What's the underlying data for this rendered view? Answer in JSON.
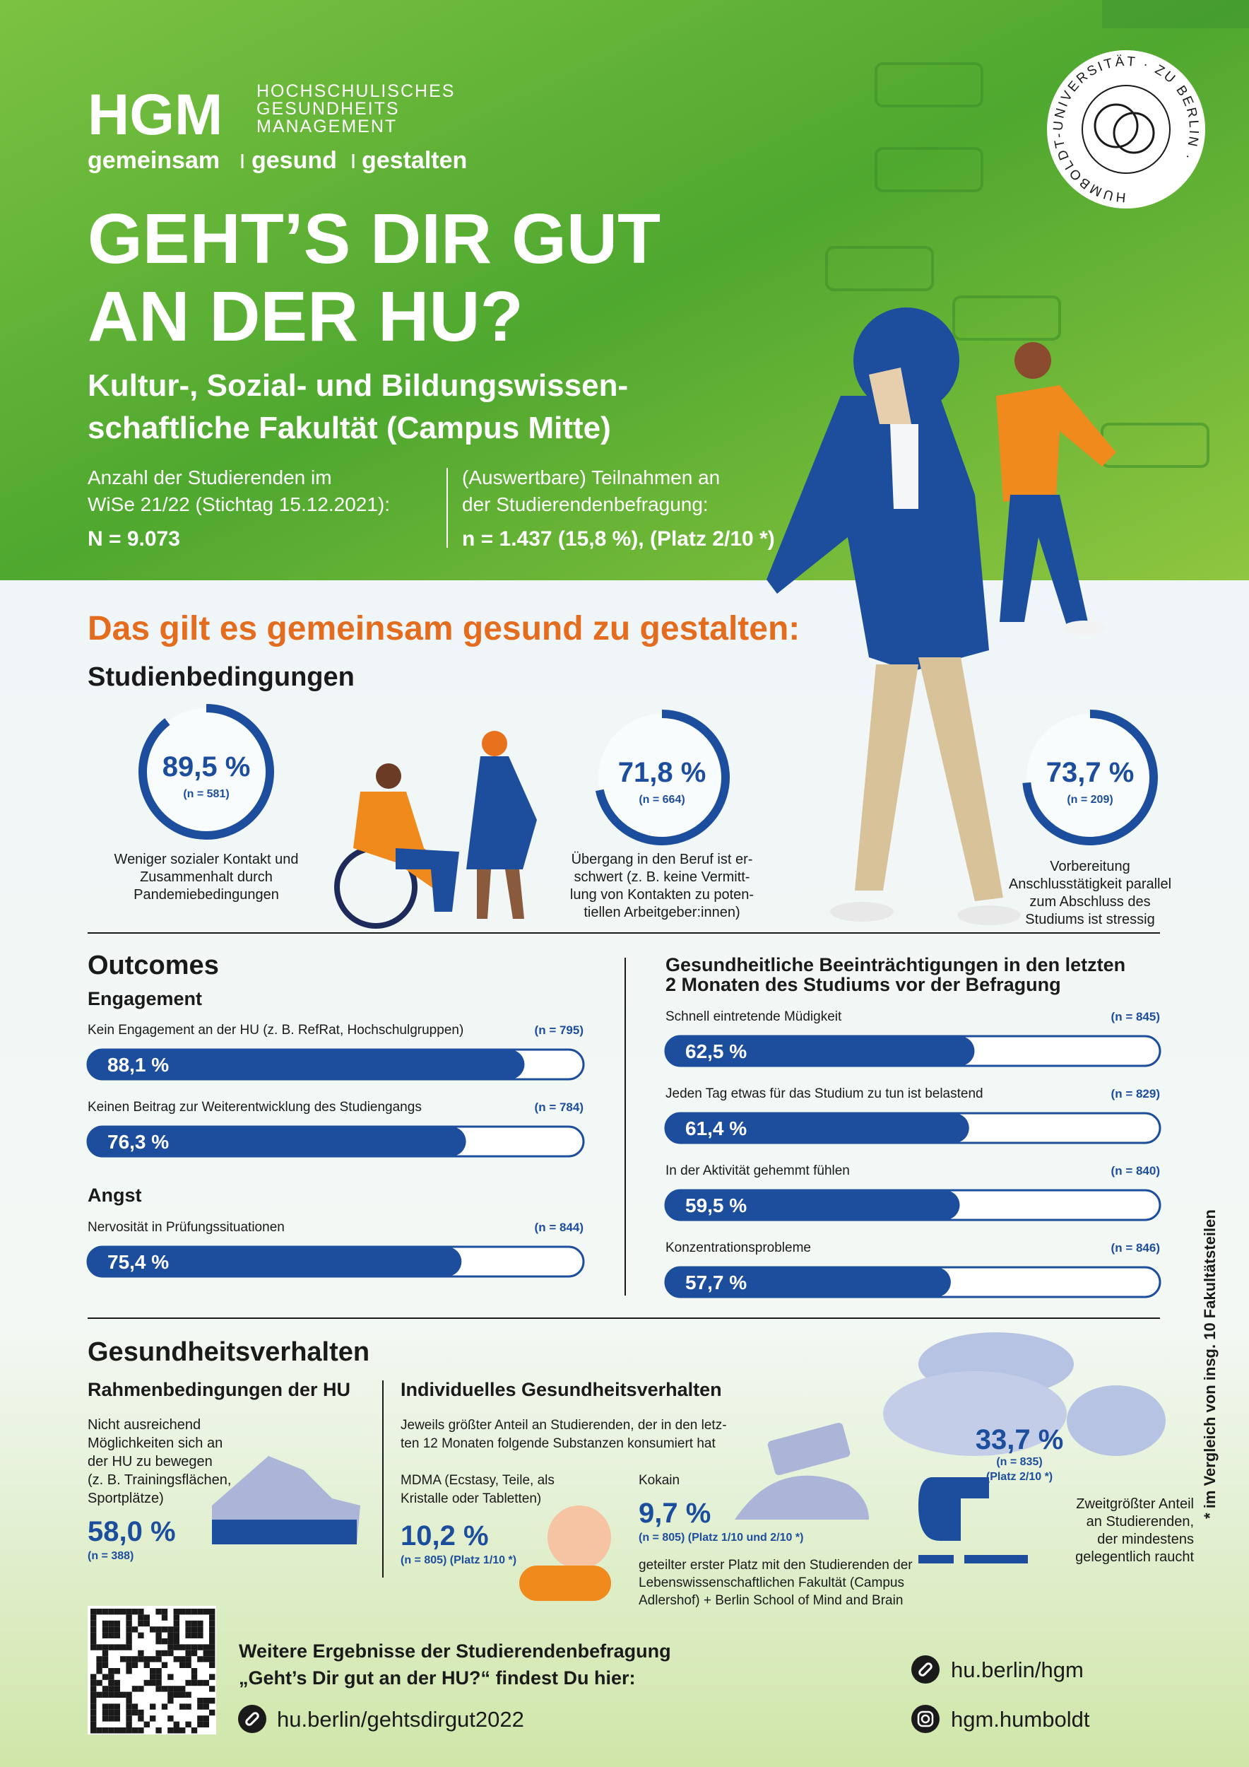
{
  "header": {
    "logo": "HGM",
    "logo_text": [
      "HOCHSCHULISCHES",
      "GESUNDHEITS",
      "MANAGEMENT"
    ],
    "tagline": [
      "gemeinsam",
      "gesund",
      "gestalten"
    ],
    "seal_text": "HUMBOLDT-UNIVERSITÄT · ZU BERLIN ·",
    "title": [
      "GEHT’S DIR GUT",
      "AN DER HU?"
    ],
    "subtitle": [
      "Kultur-, Sozial- und Bildungswissen-",
      "schaftliche Fakultät (Campus Mitte)"
    ],
    "stats": [
      {
        "label": [
          "Anzahl der Studierenden im",
          "WiSe 21/22 (Stichtag 15.12.2021):"
        ],
        "value": "N = 9.073"
      },
      {
        "label": [
          "(Auswertbare) Teilnahmen an",
          "der Studierendenbefragung:"
        ],
        "value": "n = 1.437 (15,8 %), (Platz 2/10 *)"
      }
    ]
  },
  "section_heading": "Das gilt es gemeinsam gesund zu gestalten:",
  "studienbedingungen": {
    "title": "Studienbedingungen",
    "items": [
      {
        "value": 89.5,
        "value_label": "89,5 %",
        "n": "(n = 581)",
        "caption": [
          "Weniger sozialer Kontakt und",
          "Zusammenhalt durch",
          "Pandemiebedingungen"
        ]
      },
      {
        "value": 71.8,
        "value_label": "71,8 %",
        "n": "(n = 664)",
        "caption": [
          "Übergang in den Beruf ist er-",
          "schwert (z. B. keine Vermitt-",
          "lung von Kontakten zu poten-",
          "tiellen Arbeitgeber:innen)"
        ]
      },
      {
        "value": 73.7,
        "value_label": "73,7 %",
        "n": "(n = 209)",
        "caption": [
          "Vorbereitung",
          "Anschlusstätigkeit parallel",
          "zum Abschluss des",
          "Studiums ist stressig"
        ]
      }
    ]
  },
  "outcomes": {
    "title": "Outcomes",
    "groups": [
      {
        "title": "Engagement",
        "items": [
          {
            "label": "Kein Engagement an der HU (z. B. RefRat, Hochschulgruppen)",
            "n": "(n = 795)",
            "value": 88.1,
            "value_label": "88,1 %"
          },
          {
            "label": "Keinen Beitrag zur Weiterentwicklung des Studiengangs",
            "n": "(n = 784)",
            "value": 76.3,
            "value_label": "76,3 %"
          }
        ]
      },
      {
        "title": "Angst",
        "items": [
          {
            "label": "Nervosität in Prüfungssituationen",
            "n": "(n = 844)",
            "value": 75.4,
            "value_label": "75,4 %"
          }
        ]
      }
    ]
  },
  "impairments": {
    "title": [
      "Gesundheitliche Beeinträchtigungen in den letzten",
      "2 Monaten des Studiums vor der Befragung"
    ],
    "items": [
      {
        "label": "Schnell eintretende Müdigkeit",
        "n": "(n = 845)",
        "value": 62.5,
        "value_label": "62,5 %"
      },
      {
        "label": "Jeden Tag etwas für das Studium zu tun ist belastend",
        "n": "(n = 829)",
        "value": 61.4,
        "value_label": "61,4 %"
      },
      {
        "label": "In der Aktivität gehemmt fühlen",
        "n": "(n = 840)",
        "value": 59.5,
        "value_label": "59,5 %"
      },
      {
        "label": "Konzentrationsprobleme",
        "n": "(n = 846)",
        "value": 57.7,
        "value_label": "57,7 %"
      }
    ]
  },
  "health_behavior": {
    "title": "Gesundheitsverhalten",
    "framework": {
      "title": "Rahmenbedingungen der HU",
      "text": [
        "Nicht ausreichend",
        "Möglichkeiten sich an",
        "der HU zu bewegen",
        "(z. B. Trainingsflächen,",
        "Sportplätze)"
      ],
      "value": "58,0 %",
      "n": "(n = 388)"
    },
    "individual": {
      "title": "Individuelles Gesundheitsverhalten",
      "intro": [
        "Jeweils größter Anteil an Studierenden, der in den letz-",
        "ten 12 Monaten folgende Substanzen konsumiert hat"
      ],
      "mdma": {
        "label": [
          "MDMA (Ecstasy, Teile, als",
          "Kristalle oder Tabletten)"
        ],
        "value": "10,2 %",
        "n": "(n = 805) (Platz 1/10 *)"
      },
      "cocaine": {
        "label": "Kokain",
        "value": "9,7 %",
        "n": "(n = 805) (Platz 1/10 und 2/10 *)",
        "note": [
          "geteilter erster Platz mit den Studierenden der",
          "Lebenswissenschaftlichen Fakultät (Campus",
          "Adlershof) + Berlin School of Mind and Brain"
        ]
      },
      "smoking": {
        "value": "33,7 %",
        "n": [
          "(n = 835)",
          "(Platz 2/10 *)"
        ],
        "text": [
          "Zweitgrößter Anteil",
          "an Studierenden,",
          "der mindestens",
          "gelegentlich raucht"
        ]
      }
    }
  },
  "footnote": "* im Vergleich von insg. 10 Fakultätsteilen",
  "footer": {
    "text": [
      "Weitere Ergebnisse der Studierendenbefragung",
      "„Geht’s Dir gut an der HU?“ findest Du hier:"
    ],
    "link": "hu.berlin/gehtsdirgut2022",
    "website": "hu.berlin/hgm",
    "instagram": "hgm.humboldt"
  }
}
